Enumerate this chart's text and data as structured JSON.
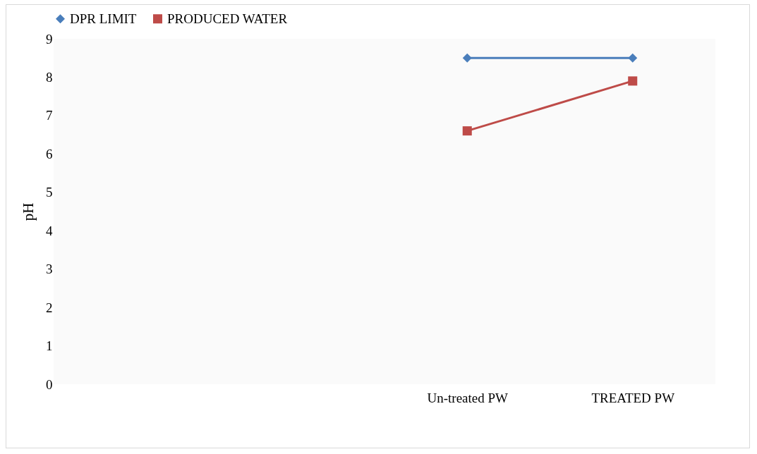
{
  "chart_data": {
    "type": "line",
    "ylabel": "pH",
    "categories": [
      null,
      null,
      "Un-treated PW",
      "TREATED PW"
    ],
    "series": [
      {
        "name": "DPR LIMIT",
        "color": "#4a7ebb",
        "marker": "diamond",
        "values": [
          null,
          null,
          8.5,
          8.5
        ]
      },
      {
        "name": "PRODUCED WATER",
        "color": "#be4b48",
        "marker": "square",
        "values": [
          null,
          null,
          6.6,
          7.9
        ]
      }
    ],
    "ylim": [
      0,
      9
    ],
    "yticks": [
      0,
      1,
      2,
      3,
      4,
      5,
      6,
      7,
      8,
      9
    ],
    "grid": false,
    "legend": "top"
  }
}
